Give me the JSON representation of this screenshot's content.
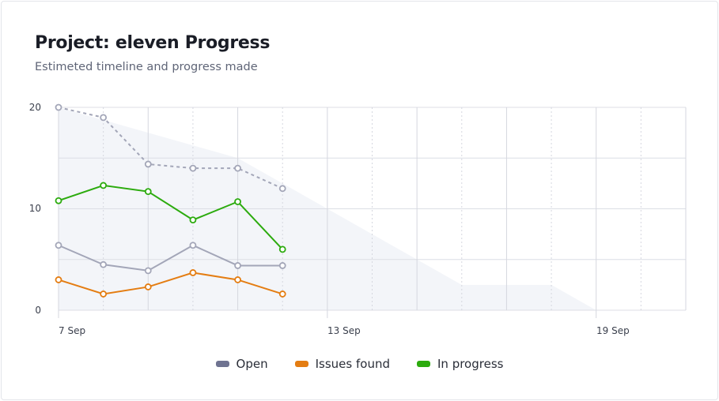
{
  "title": "Project: eleven Progress",
  "subtitle": "Estimeted timeline and progress made",
  "chart_data": {
    "type": "line",
    "x_ticks": [
      "7 Sep",
      "13 Sep",
      "19 Sep"
    ],
    "x_dates": [
      "7 Sep",
      "8 Sep",
      "9 Sep",
      "10 Sep",
      "11 Sep",
      "12 Sep"
    ],
    "xlim": [
      "7 Sep",
      "21 Sep"
    ],
    "ylim": [
      0,
      20
    ],
    "y_ticks": [
      0,
      10,
      20
    ],
    "grid": true,
    "legend_position": "bottom",
    "area": {
      "dates": [
        "7 Sep",
        "11 Sep",
        "13 Sep",
        "16 Sep",
        "18 Sep",
        "19 Sep"
      ],
      "values": [
        20,
        15,
        10,
        2.5,
        2.5,
        0
      ],
      "color": "#f3f5f9"
    },
    "series": [
      {
        "key": "estimated",
        "values": [
          20,
          19,
          14.4,
          14,
          14,
          12
        ],
        "color": "#a3a6b8",
        "dashed": true
      },
      {
        "name": "Open",
        "values": [
          6.4,
          4.5,
          3.9,
          6.4,
          4.4,
          4.4
        ],
        "color": "#a3a6b8",
        "legend_color": "#6f7391"
      },
      {
        "name": "Issues found",
        "values": [
          3,
          1.6,
          2.3,
          3.7,
          3,
          1.6
        ],
        "color": "#e47d12"
      },
      {
        "name": "In progress",
        "values": [
          10.8,
          12.3,
          11.7,
          8.9,
          10.7,
          6
        ],
        "color": "#2cab0e"
      }
    ]
  }
}
